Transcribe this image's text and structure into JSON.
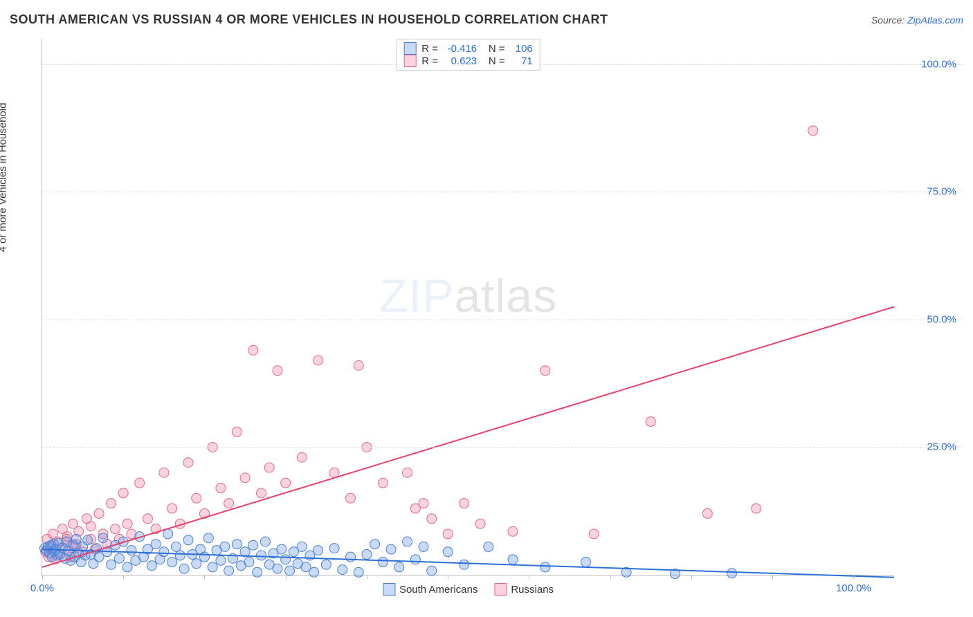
{
  "header": {
    "title": "SOUTH AMERICAN VS RUSSIAN 4 OR MORE VEHICLES IN HOUSEHOLD CORRELATION CHART",
    "source_prefix": "Source: ",
    "source_link": "ZipAtlas.com"
  },
  "axes": {
    "ylabel": "4 or more Vehicles in Household",
    "ylabel_fontsize": 15,
    "xlim": [
      0,
      105
    ],
    "ylim": [
      0,
      105
    ],
    "yticks": [
      {
        "v": 25,
        "label": "25.0%"
      },
      {
        "v": 50,
        "label": "50.0%"
      },
      {
        "v": 75,
        "label": "75.0%"
      },
      {
        "v": 100,
        "label": "100.0%"
      }
    ],
    "xtick_marks": [
      0,
      10,
      20,
      30,
      40,
      50,
      60,
      70,
      80,
      90,
      100
    ],
    "xtick_labels": [
      {
        "v": 0,
        "label": "0.0%"
      },
      {
        "v": 100,
        "label": "100.0%"
      }
    ],
    "grid_color": "#dddddd",
    "axis_color": "#bbbbbb",
    "tick_label_color": "#2b6fd8"
  },
  "watermark": {
    "zip": "ZIP",
    "atlas": "atlas"
  },
  "series": {
    "south_americans": {
      "label": "South Americans",
      "marker_fill": "rgba(100,150,230,0.35)",
      "marker_stroke": "#4a80d0",
      "line_color": "#2b6fd8",
      "line_width": 2,
      "marker_radius": 7,
      "R": "-0.416",
      "N": "106",
      "regression": {
        "x1": 0,
        "y1": 5.0,
        "x2": 105,
        "y2": -0.5
      },
      "points": [
        [
          0.3,
          5.2
        ],
        [
          0.5,
          4.8
        ],
        [
          0.7,
          5.5
        ],
        [
          0.9,
          4.2
        ],
        [
          1.1,
          5.8
        ],
        [
          1.2,
          3.5
        ],
        [
          1.4,
          6.0
        ],
        [
          1.5,
          4.5
        ],
        [
          1.7,
          5.0
        ],
        [
          1.9,
          3.8
        ],
        [
          2.0,
          6.2
        ],
        [
          2.2,
          4.0
        ],
        [
          2.5,
          5.3
        ],
        [
          2.8,
          3.2
        ],
        [
          3.0,
          6.5
        ],
        [
          3.2,
          4.7
        ],
        [
          3.5,
          2.8
        ],
        [
          3.8,
          5.9
        ],
        [
          4.0,
          3.5
        ],
        [
          4.2,
          7.0
        ],
        [
          4.5,
          4.2
        ],
        [
          4.8,
          2.5
        ],
        [
          5.0,
          5.5
        ],
        [
          5.3,
          3.8
        ],
        [
          5.6,
          6.8
        ],
        [
          6.0,
          4.0
        ],
        [
          6.3,
          2.2
        ],
        [
          6.7,
          5.2
        ],
        [
          7.0,
          3.5
        ],
        [
          7.5,
          7.2
        ],
        [
          8.0,
          4.5
        ],
        [
          8.5,
          2.0
        ],
        [
          9.0,
          5.8
        ],
        [
          9.5,
          3.2
        ],
        [
          10.0,
          6.5
        ],
        [
          10.5,
          1.5
        ],
        [
          11.0,
          4.8
        ],
        [
          11.5,
          2.8
        ],
        [
          12.0,
          7.5
        ],
        [
          12.5,
          3.5
        ],
        [
          13.0,
          5.0
        ],
        [
          13.5,
          1.8
        ],
        [
          14.0,
          6.0
        ],
        [
          14.5,
          3.0
        ],
        [
          15.0,
          4.5
        ],
        [
          15.5,
          8.0
        ],
        [
          16.0,
          2.5
        ],
        [
          16.5,
          5.5
        ],
        [
          17.0,
          3.8
        ],
        [
          17.5,
          1.2
        ],
        [
          18.0,
          6.8
        ],
        [
          18.5,
          4.0
        ],
        [
          19.0,
          2.2
        ],
        [
          19.5,
          5.0
        ],
        [
          20.0,
          3.5
        ],
        [
          20.5,
          7.2
        ],
        [
          21.0,
          1.5
        ],
        [
          21.5,
          4.8
        ],
        [
          22.0,
          2.8
        ],
        [
          22.5,
          5.5
        ],
        [
          23.0,
          0.8
        ],
        [
          23.5,
          3.2
        ],
        [
          24.0,
          6.0
        ],
        [
          24.5,
          1.8
        ],
        [
          25.0,
          4.5
        ],
        [
          25.5,
          2.5
        ],
        [
          26.0,
          5.8
        ],
        [
          26.5,
          0.5
        ],
        [
          27.0,
          3.8
        ],
        [
          27.5,
          6.5
        ],
        [
          28.0,
          2.0
        ],
        [
          28.5,
          4.2
        ],
        [
          29.0,
          1.2
        ],
        [
          29.5,
          5.0
        ],
        [
          30.0,
          3.0
        ],
        [
          30.5,
          0.8
        ],
        [
          31.0,
          4.5
        ],
        [
          31.5,
          2.2
        ],
        [
          32.0,
          5.5
        ],
        [
          32.5,
          1.5
        ],
        [
          33.0,
          3.8
        ],
        [
          33.5,
          0.5
        ],
        [
          34.0,
          4.8
        ],
        [
          35.0,
          2.0
        ],
        [
          36.0,
          5.2
        ],
        [
          37.0,
          1.0
        ],
        [
          38.0,
          3.5
        ],
        [
          39.0,
          0.5
        ],
        [
          40.0,
          4.0
        ],
        [
          41.0,
          6.0
        ],
        [
          42.0,
          2.5
        ],
        [
          43.0,
          5.0
        ],
        [
          44.0,
          1.5
        ],
        [
          45.0,
          6.5
        ],
        [
          46.0,
          3.0
        ],
        [
          47.0,
          5.5
        ],
        [
          48.0,
          0.8
        ],
        [
          50.0,
          4.5
        ],
        [
          52.0,
          2.0
        ],
        [
          55.0,
          5.5
        ],
        [
          58.0,
          3.0
        ],
        [
          62.0,
          1.5
        ],
        [
          67.0,
          2.5
        ],
        [
          72.0,
          0.5
        ],
        [
          78.0,
          0.2
        ],
        [
          85.0,
          0.3
        ]
      ]
    },
    "russians": {
      "label": "Russians",
      "marker_fill": "rgba(240,130,160,0.35)",
      "marker_stroke": "#e06a8a",
      "line_color": "#e8416a",
      "line_width": 2,
      "marker_radius": 7,
      "R": "0.623",
      "N": "71",
      "regression": {
        "x1": 0,
        "y1": 1.5,
        "x2": 105,
        "y2": 52.5
      },
      "points": [
        [
          0.4,
          4.5
        ],
        [
          0.6,
          7.0
        ],
        [
          0.8,
          3.5
        ],
        [
          1.0,
          5.5
        ],
        [
          1.3,
          8.0
        ],
        [
          1.6,
          3.0
        ],
        [
          1.9,
          6.5
        ],
        [
          2.2,
          4.0
        ],
        [
          2.5,
          9.0
        ],
        [
          2.8,
          5.0
        ],
        [
          3.1,
          7.5
        ],
        [
          3.5,
          3.5
        ],
        [
          3.8,
          10.0
        ],
        [
          4.2,
          6.0
        ],
        [
          4.5,
          8.5
        ],
        [
          5.0,
          4.5
        ],
        [
          5.5,
          11.0
        ],
        [
          6.0,
          7.0
        ],
        [
          6.5,
          5.0
        ],
        [
          7.0,
          12.0
        ],
        [
          7.5,
          8.0
        ],
        [
          8.0,
          6.0
        ],
        [
          8.5,
          14.0
        ],
        [
          9.0,
          9.0
        ],
        [
          9.5,
          7.0
        ],
        [
          10.0,
          16.0
        ],
        [
          10.5,
          10.0
        ],
        [
          11.0,
          8.0
        ],
        [
          12.0,
          18.0
        ],
        [
          13.0,
          11.0
        ],
        [
          14.0,
          9.0
        ],
        [
          15.0,
          20.0
        ],
        [
          16.0,
          13.0
        ],
        [
          17.0,
          10.0
        ],
        [
          18.0,
          22.0
        ],
        [
          19.0,
          15.0
        ],
        [
          20.0,
          12.0
        ],
        [
          21.0,
          25.0
        ],
        [
          22.0,
          17.0
        ],
        [
          23.0,
          14.0
        ],
        [
          24.0,
          28.0
        ],
        [
          25.0,
          19.0
        ],
        [
          26.0,
          44.0
        ],
        [
          27.0,
          16.0
        ],
        [
          28.0,
          21.0
        ],
        [
          29.0,
          40.0
        ],
        [
          30.0,
          18.0
        ],
        [
          32.0,
          23.0
        ],
        [
          34.0,
          42.0
        ],
        [
          36.0,
          20.0
        ],
        [
          38.0,
          15.0
        ],
        [
          39.0,
          41.0
        ],
        [
          40.0,
          25.0
        ],
        [
          42.0,
          18.0
        ],
        [
          45.0,
          20.0
        ],
        [
          46.0,
          13.0
        ],
        [
          47.0,
          14.0
        ],
        [
          48.0,
          11.0
        ],
        [
          50.0,
          8.0
        ],
        [
          52.0,
          14.0
        ],
        [
          54.0,
          10.0
        ],
        [
          58.0,
          8.5
        ],
        [
          62.0,
          40.0
        ],
        [
          68.0,
          8.0
        ],
        [
          75.0,
          30.0
        ],
        [
          82.0,
          12.0
        ],
        [
          88.0,
          13.0
        ],
        [
          95.0,
          87.0
        ],
        [
          3.0,
          7.0
        ],
        [
          4.0,
          5.5
        ],
        [
          6.0,
          9.5
        ]
      ]
    }
  },
  "legend_top": {
    "r_label": "R =",
    "n_label": "N ="
  },
  "colors": {
    "title_color": "#333333",
    "source_color": "#555555",
    "link_color": "#2b6fd8",
    "background": "#ffffff"
  }
}
